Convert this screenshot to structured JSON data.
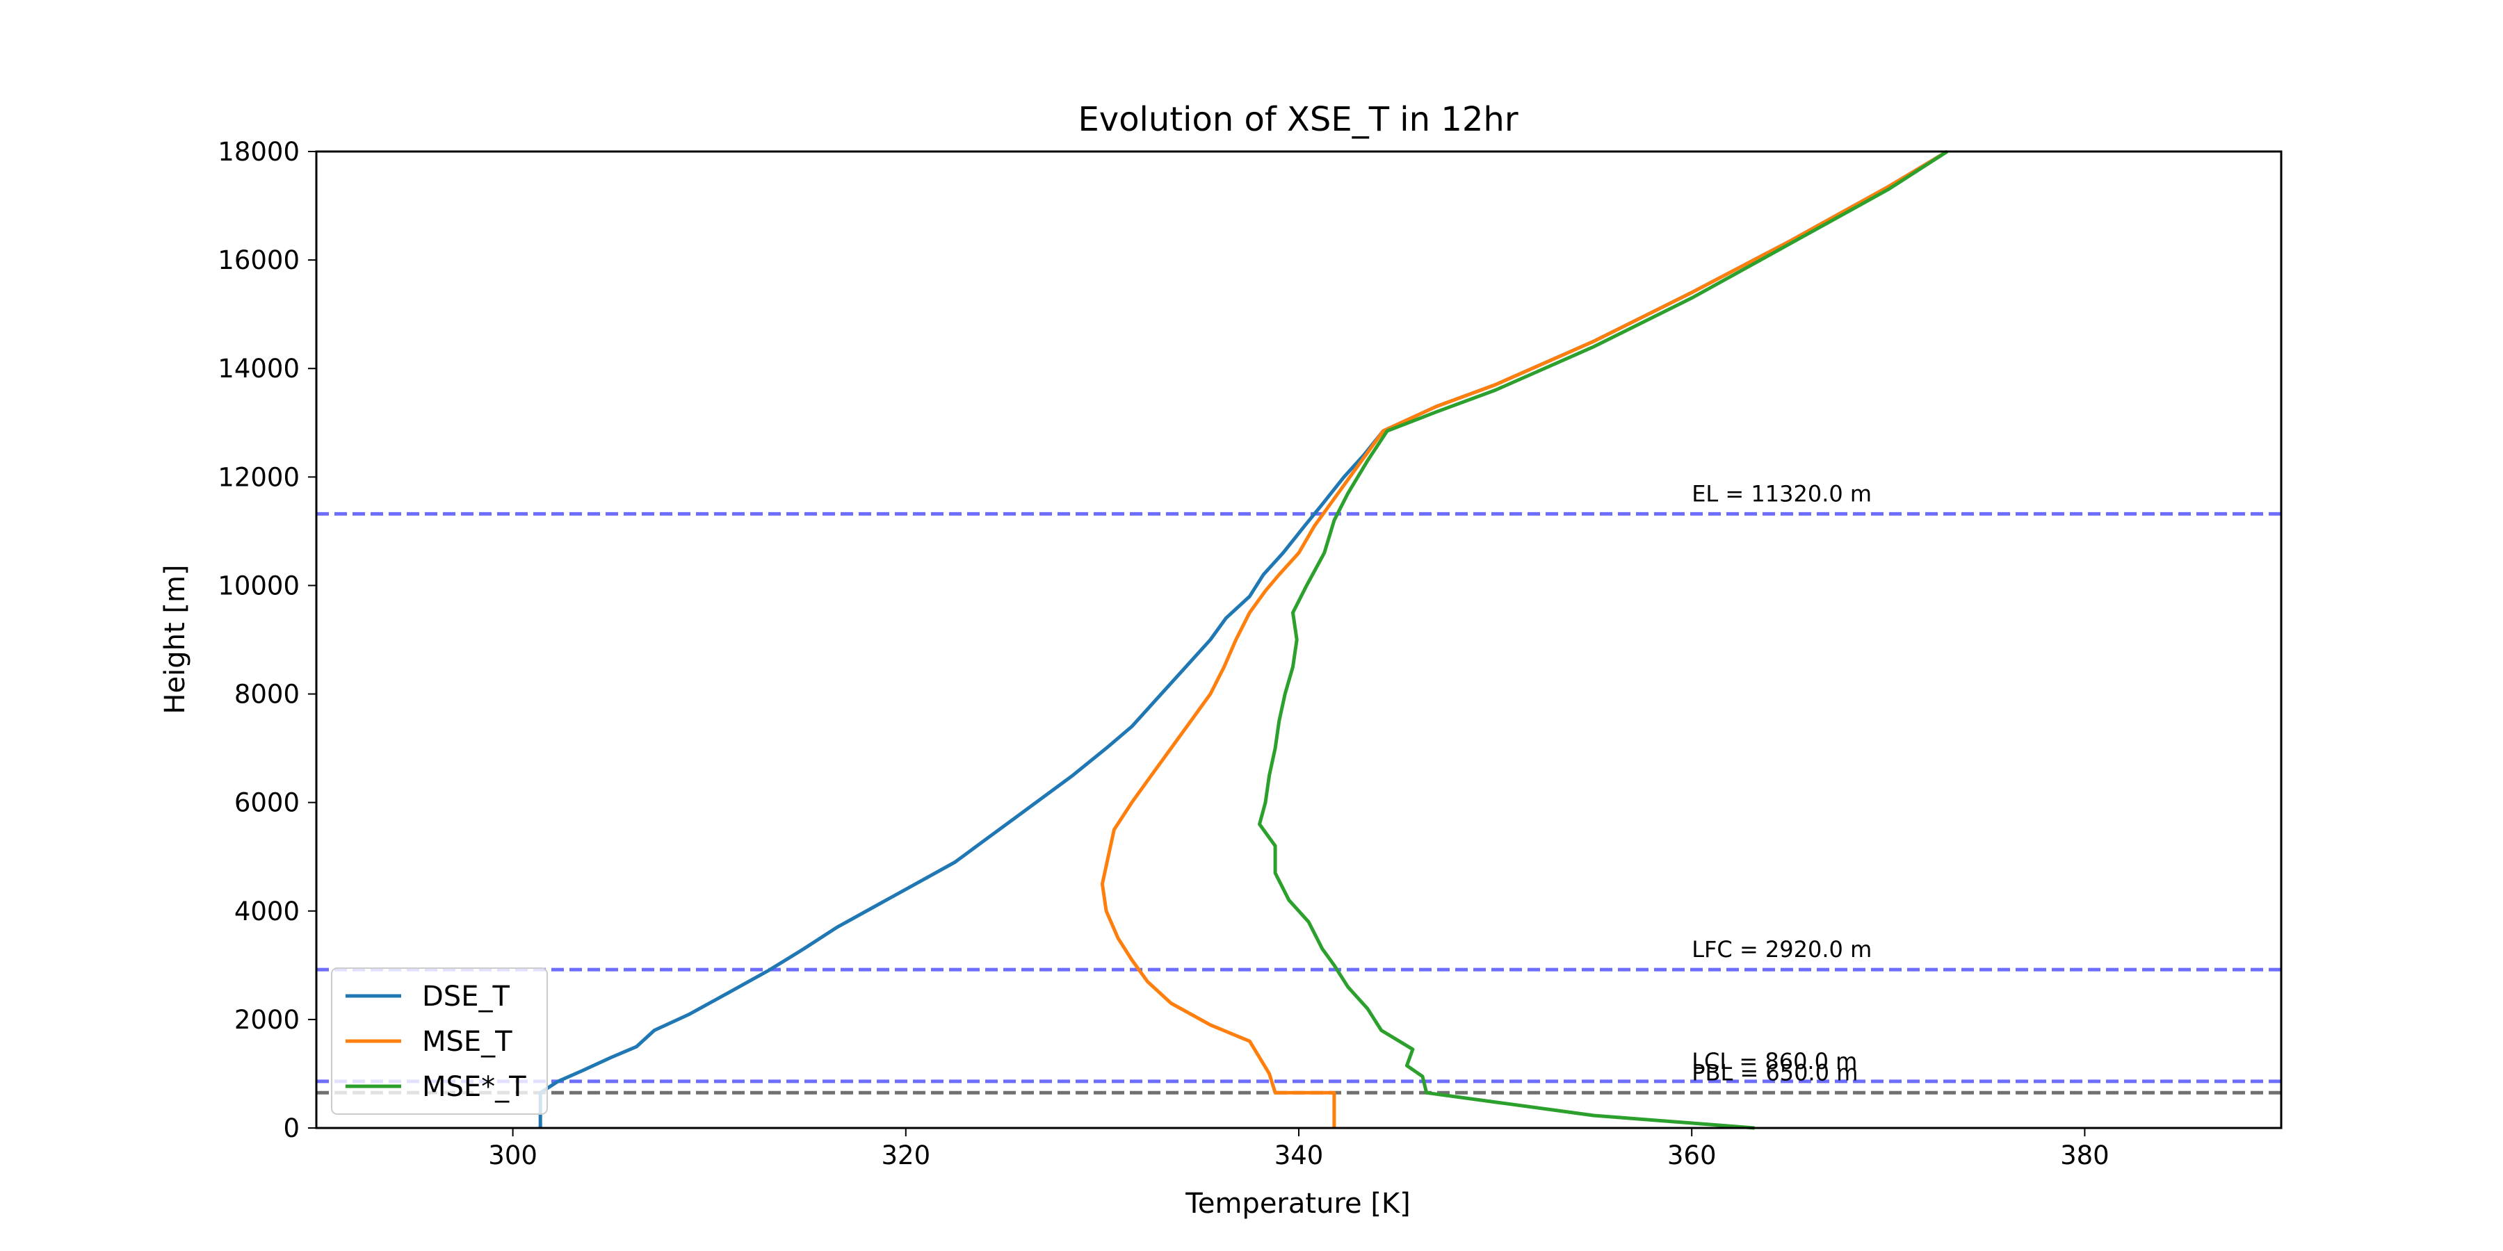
{
  "chart_data": {
    "type": "line",
    "title": "Evolution of XSE_T in 12hr",
    "xlabel": "Temperature [K]",
    "ylabel": "Height [m]",
    "xlim": [
      290,
      390
    ],
    "ylim": [
      0,
      18000
    ],
    "xticks": [
      300,
      320,
      340,
      360,
      380
    ],
    "yticks": [
      0,
      2000,
      4000,
      6000,
      8000,
      10000,
      12000,
      14000,
      16000,
      18000
    ],
    "grid": false,
    "legend_position": "lower-left",
    "series": [
      {
        "name": "DSE_T",
        "color": "#1f77b4",
        "points": [
          [
            301.4,
            0
          ],
          [
            301.4,
            650
          ],
          [
            302.3,
            860
          ],
          [
            303.5,
            1050
          ],
          [
            305.0,
            1300
          ],
          [
            306.3,
            1500
          ],
          [
            307.2,
            1800
          ],
          [
            309.0,
            2100
          ],
          [
            311.0,
            2500
          ],
          [
            313.0,
            2900
          ],
          [
            314.8,
            3300
          ],
          [
            316.5,
            3700
          ],
          [
            318.5,
            4100
          ],
          [
            320.5,
            4500
          ],
          [
            322.5,
            4900
          ],
          [
            324.0,
            5300
          ],
          [
            325.5,
            5700
          ],
          [
            327.0,
            6100
          ],
          [
            328.5,
            6500
          ],
          [
            330.2,
            7000
          ],
          [
            331.5,
            7400
          ],
          [
            332.5,
            7800
          ],
          [
            333.5,
            8200
          ],
          [
            334.5,
            8600
          ],
          [
            335.5,
            9000
          ],
          [
            336.3,
            9400
          ],
          [
            337.5,
            9800
          ],
          [
            338.2,
            10200
          ],
          [
            339.2,
            10600
          ],
          [
            340.3,
            11100
          ],
          [
            341.2,
            11500
          ],
          [
            342.3,
            12000
          ],
          [
            343.3,
            12400
          ],
          [
            344.3,
            12850
          ],
          [
            347.0,
            13300
          ],
          [
            350.0,
            13700
          ],
          [
            355.0,
            14500
          ],
          [
            360.0,
            15400
          ],
          [
            365.0,
            16350
          ],
          [
            370.0,
            17350
          ],
          [
            373.0,
            18000
          ]
        ]
      },
      {
        "name": "MSE_T",
        "color": "#ff7f0e",
        "points": [
          [
            341.8,
            0
          ],
          [
            341.8,
            300
          ],
          [
            341.8,
            650
          ],
          [
            338.8,
            650
          ],
          [
            338.5,
            1000
          ],
          [
            338.0,
            1300
          ],
          [
            337.5,
            1600
          ],
          [
            335.5,
            1900
          ],
          [
            333.5,
            2300
          ],
          [
            332.3,
            2700
          ],
          [
            331.5,
            3100
          ],
          [
            330.8,
            3500
          ],
          [
            330.2,
            4000
          ],
          [
            330.0,
            4500
          ],
          [
            330.3,
            5000
          ],
          [
            330.6,
            5500
          ],
          [
            331.5,
            6000
          ],
          [
            332.5,
            6500
          ],
          [
            333.5,
            7000
          ],
          [
            334.5,
            7500
          ],
          [
            335.5,
            8000
          ],
          [
            336.2,
            8500
          ],
          [
            336.8,
            9000
          ],
          [
            337.5,
            9500
          ],
          [
            338.3,
            9900
          ],
          [
            339.0,
            10200
          ],
          [
            340.0,
            10600
          ],
          [
            340.8,
            11100
          ],
          [
            342.0,
            11700
          ],
          [
            343.0,
            12200
          ],
          [
            344.3,
            12850
          ],
          [
            347.0,
            13300
          ],
          [
            350.0,
            13700
          ],
          [
            355.0,
            14500
          ],
          [
            360.0,
            15400
          ],
          [
            365.0,
            16350
          ],
          [
            370.0,
            17350
          ],
          [
            373.0,
            18000
          ]
        ]
      },
      {
        "name": "MSE*_T",
        "color": "#2ca02c",
        "points": [
          [
            363.2,
            0
          ],
          [
            355.0,
            230
          ],
          [
            346.5,
            650
          ],
          [
            346.3,
            950
          ],
          [
            345.5,
            1150
          ],
          [
            345.8,
            1450
          ],
          [
            344.2,
            1800
          ],
          [
            343.5,
            2200
          ],
          [
            342.5,
            2600
          ],
          [
            341.8,
            3000
          ],
          [
            341.2,
            3300
          ],
          [
            340.5,
            3800
          ],
          [
            339.5,
            4200
          ],
          [
            338.8,
            4700
          ],
          [
            338.8,
            5200
          ],
          [
            338.0,
            5600
          ],
          [
            338.3,
            6000
          ],
          [
            338.5,
            6500
          ],
          [
            338.8,
            7000
          ],
          [
            339.0,
            7500
          ],
          [
            339.3,
            8000
          ],
          [
            339.7,
            8500
          ],
          [
            339.9,
            9000
          ],
          [
            339.7,
            9500
          ],
          [
            340.4,
            10000
          ],
          [
            341.3,
            10600
          ],
          [
            341.8,
            11200
          ],
          [
            342.5,
            11700
          ],
          [
            343.5,
            12300
          ],
          [
            344.5,
            12850
          ],
          [
            347.0,
            13200
          ],
          [
            350.0,
            13600
          ],
          [
            355.0,
            14400
          ],
          [
            360.0,
            15300
          ],
          [
            365.0,
            16300
          ],
          [
            370.0,
            17300
          ],
          [
            373.0,
            18000
          ]
        ]
      }
    ],
    "reference_lines": [
      {
        "label": "EL = 11320.0 m",
        "y": 11320,
        "color": "#6c6cff"
      },
      {
        "label": "LFC = 2920.0 m",
        "y": 2920,
        "color": "#6c6cff"
      },
      {
        "label": "LCL = 860.0 m",
        "y": 860,
        "color": "#6c6cff"
      },
      {
        "label": "PBL = 650.0 m",
        "y": 650,
        "color": "#707070"
      }
    ]
  }
}
